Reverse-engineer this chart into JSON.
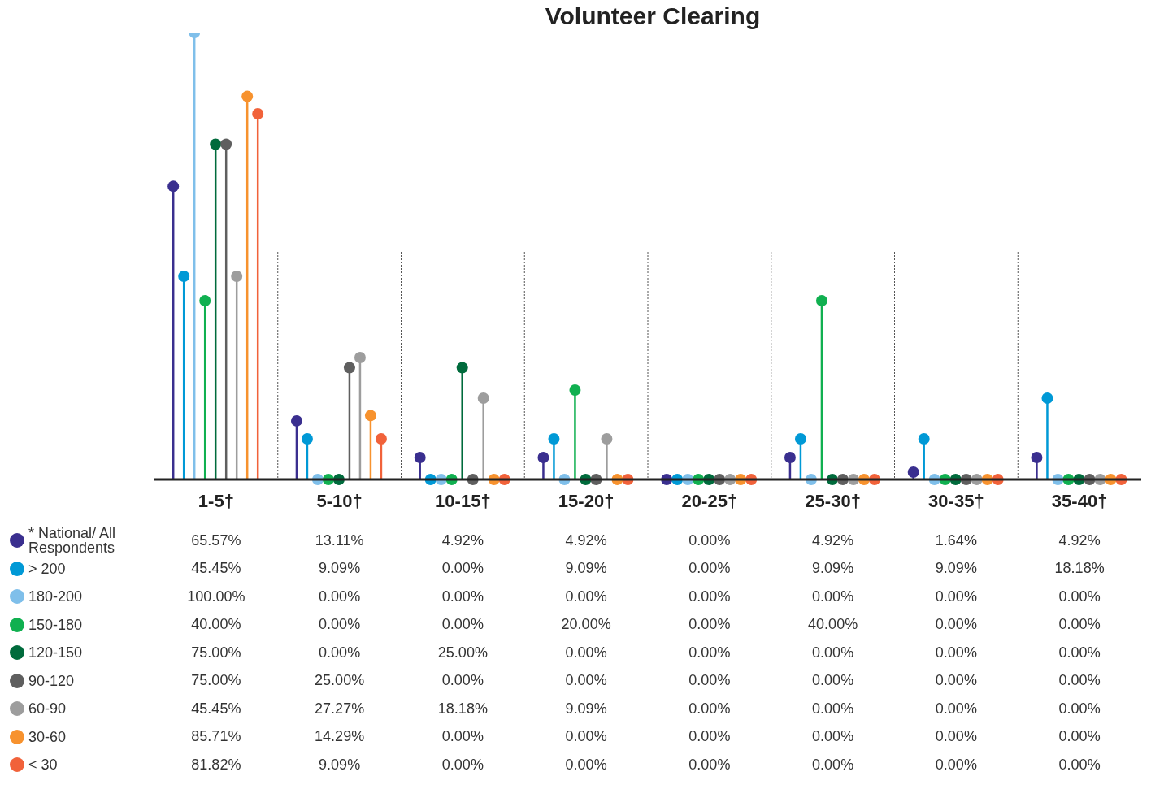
{
  "chart_data": {
    "type": "lollipop",
    "title": "Volunteer Clearing",
    "categories": [
      "1-5†",
      "5-10†",
      "10-15†",
      "15-20†",
      "20-25†",
      "25-30†",
      "30-35†",
      "35-40†"
    ],
    "legend": "bottom",
    "data_labels": true,
    "series": [
      {
        "name": "* National/ All Respondents",
        "color": "#3a2f8f",
        "values": [
          65.57,
          13.11,
          4.92,
          4.92,
          0,
          4.92,
          1.64,
          4.92
        ],
        "value_labels": [
          "65.57%",
          "13.11%",
          "4.92%",
          "4.92%",
          "0.00%",
          "4.92%",
          "1.64%",
          "4.92%"
        ]
      },
      {
        "name": "> 200",
        "color": "#0099d6",
        "values": [
          45.45,
          9.09,
          0,
          9.09,
          0,
          9.09,
          9.09,
          18.18
        ],
        "value_labels": [
          "45.45%",
          "9.09%",
          "0.00%",
          "9.09%",
          "0.00%",
          "9.09%",
          "9.09%",
          "18.18%"
        ]
      },
      {
        "name": "180-200",
        "color": "#7fbfea",
        "values": [
          100,
          0,
          0,
          0,
          0,
          0,
          0,
          0
        ],
        "value_labels": [
          "100.00%",
          "0.00%",
          "0.00%",
          "0.00%",
          "0.00%",
          "0.00%",
          "0.00%",
          "0.00%"
        ]
      },
      {
        "name": "150-180",
        "color": "#10b050",
        "values": [
          40,
          0,
          0,
          20,
          0,
          40,
          0,
          0
        ],
        "value_labels": [
          "40.00%",
          "0.00%",
          "0.00%",
          "20.00%",
          "0.00%",
          "40.00%",
          "0.00%",
          "0.00%"
        ]
      },
      {
        "name": "120-150",
        "color": "#006b3c",
        "values": [
          75,
          0,
          25,
          0,
          0,
          0,
          0,
          0
        ],
        "value_labels": [
          "75.00%",
          "0.00%",
          "25.00%",
          "0.00%",
          "0.00%",
          "0.00%",
          "0.00%",
          "0.00%"
        ]
      },
      {
        "name": "90-120",
        "color": "#5f5f5f",
        "values": [
          75,
          25,
          0,
          0,
          0,
          0,
          0,
          0
        ],
        "value_labels": [
          "75.00%",
          "25.00%",
          "0.00%",
          "0.00%",
          "0.00%",
          "0.00%",
          "0.00%",
          "0.00%"
        ]
      },
      {
        "name": "60-90",
        "color": "#9d9d9d",
        "values": [
          45.45,
          27.27,
          18.18,
          9.09,
          0,
          0,
          0,
          0
        ],
        "value_labels": [
          "45.45%",
          "27.27%",
          "18.18%",
          "9.09%",
          "0.00%",
          "0.00%",
          "0.00%",
          "0.00%"
        ]
      },
      {
        "name": "30-60",
        "color": "#f7922e",
        "values": [
          85.71,
          14.29,
          0,
          0,
          0,
          0,
          0,
          0
        ],
        "value_labels": [
          "85.71%",
          "14.29%",
          "0.00%",
          "0.00%",
          "0.00%",
          "0.00%",
          "0.00%",
          "0.00%"
        ]
      },
      {
        "name": "< 30",
        "color": "#f1623a",
        "values": [
          81.82,
          9.09,
          0,
          0,
          0,
          0,
          0,
          0
        ],
        "value_labels": [
          "81.82%",
          "9.09%",
          "0.00%",
          "0.00%",
          "0.00%",
          "0.00%",
          "0.00%",
          "0.00%"
        ]
      }
    ]
  }
}
